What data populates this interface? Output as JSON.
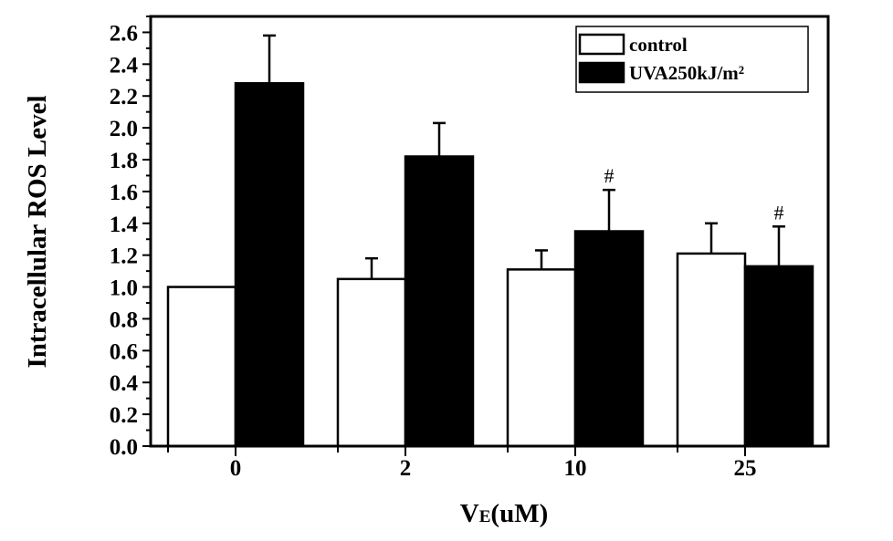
{
  "chart_data": {
    "type": "bar",
    "categories": [
      "0",
      "2",
      "10",
      "25"
    ],
    "series": [
      {
        "name": "control",
        "values": [
          1.0,
          1.05,
          1.11,
          1.21
        ],
        "errors": [
          0.0,
          0.13,
          0.12,
          0.19
        ],
        "color": "#ffffff"
      },
      {
        "name": "UVA250kJ/m²",
        "values": [
          2.28,
          1.82,
          1.35,
          1.13
        ],
        "errors": [
          0.3,
          0.21,
          0.26,
          0.25
        ],
        "color": "#000000"
      }
    ],
    "annotations": [
      "",
      "",
      "#",
      "#"
    ],
    "ylabel": "Intracellular  ROS Level",
    "xlabel": "V",
    "xlabel_sub": "E",
    "xlabel_unit": "(uM)",
    "ylim": [
      0.0,
      2.7
    ],
    "yticks": [
      "0.0",
      "0.2",
      "0.4",
      "0.6",
      "0.8",
      "1.0",
      "1.2",
      "1.4",
      "1.6",
      "1.8",
      "2.0",
      "2.2",
      "2.4",
      "2.6"
    ],
    "legend_position": "top-right",
    "grid": false
  }
}
